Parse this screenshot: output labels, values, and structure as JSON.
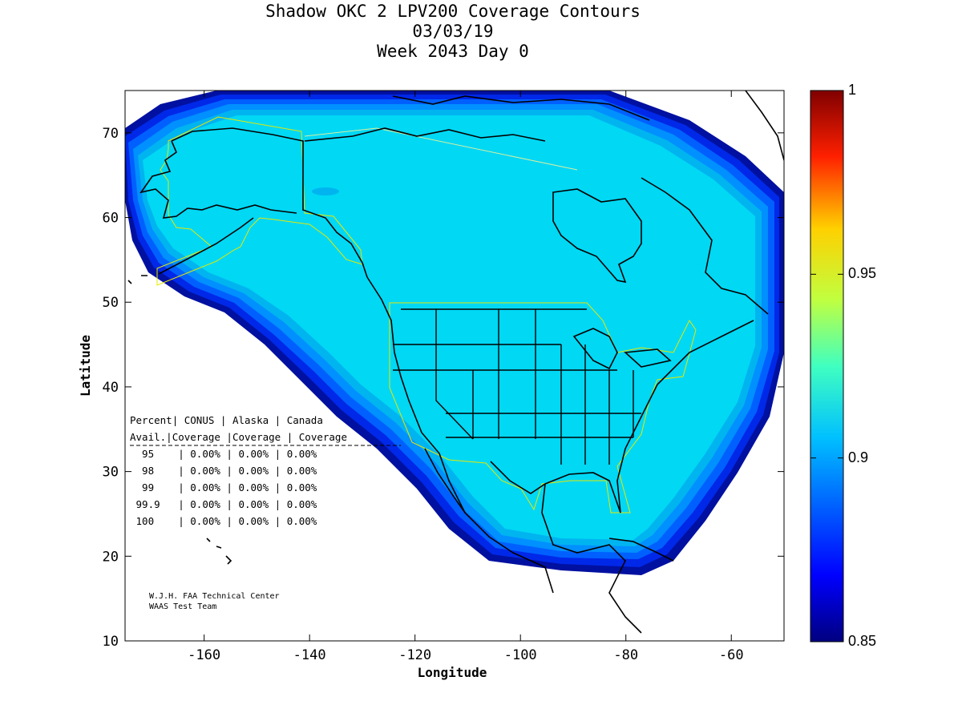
{
  "title": {
    "line1": "Shadow OKC 2 LPV200 Coverage Contours",
    "line2": "03/03/19",
    "line3": "Week 2043 Day 0"
  },
  "chart_data": {
    "type": "heatmap",
    "title": "Shadow OKC 2 LPV200 Coverage Contours",
    "xlabel": "Longitude",
    "ylabel": "Latitude",
    "xlim": [
      -175,
      -50
    ],
    "ylim": [
      10,
      75
    ],
    "xticks": [
      -160,
      -140,
      -120,
      -100,
      -80,
      -60
    ],
    "yticks": [
      10,
      20,
      30,
      40,
      50,
      60,
      70
    ],
    "colorbar": {
      "min": 0.85,
      "max": 1,
      "labels": [
        "1",
        "0.95",
        "0.9",
        "0.85"
      ],
      "label_values": [
        1,
        0.95,
        0.9,
        0.85
      ]
    },
    "dominant_value": 0.9,
    "region_outlines": [
      "CONUS",
      "Alaska",
      "Canada"
    ]
  },
  "stats_table": {
    "header1": [
      "Percent",
      "CONUS",
      "Alaska",
      "Canada"
    ],
    "header2": [
      "Avail.",
      "Coverage",
      "Coverage",
      "Coverage"
    ],
    "rows": [
      [
        "95",
        "0.00%",
        "0.00%",
        "0.00%"
      ],
      [
        "98",
        "0.00%",
        "0.00%",
        "0.00%"
      ],
      [
        "99",
        "0.00%",
        "0.00%",
        "0.00%"
      ],
      [
        "99.9",
        "0.00%",
        "0.00%",
        "0.00%"
      ],
      [
        "100",
        "0.00%",
        "0.00%",
        "0.00%"
      ]
    ]
  },
  "credits": {
    "line1": "W.J.H. FAA Technical Center",
    "line2": "WAAS Test Team"
  },
  "colors": {
    "ocean_coverage": "#00d8f4",
    "band1": "#00b4f0",
    "band2": "#0090ff",
    "band3": "#0060ff",
    "band4": "#0028e8",
    "band5": "#0010a0",
    "region_outline": "#e8e800",
    "coast": "#000000"
  }
}
